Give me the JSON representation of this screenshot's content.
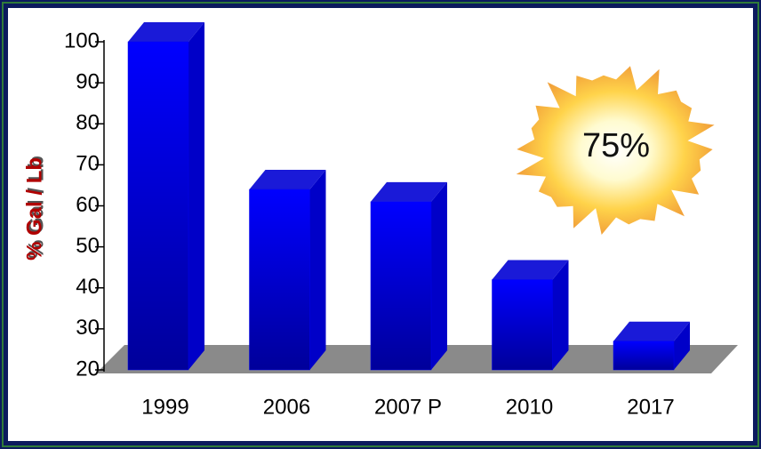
{
  "chart_data": {
    "type": "bar",
    "y_label": "% Gal / Lb",
    "annotation": "75%",
    "categories": [
      "1999",
      "2006",
      "2007 P",
      "2010",
      "2017"
    ],
    "values": [
      100,
      64,
      61,
      42,
      27
    ],
    "color": "#0000ee",
    "ylim": [
      20,
      100
    ],
    "yticks": [
      20,
      30,
      40,
      50,
      60,
      70,
      80,
      90,
      100
    ],
    "grid": false
  }
}
